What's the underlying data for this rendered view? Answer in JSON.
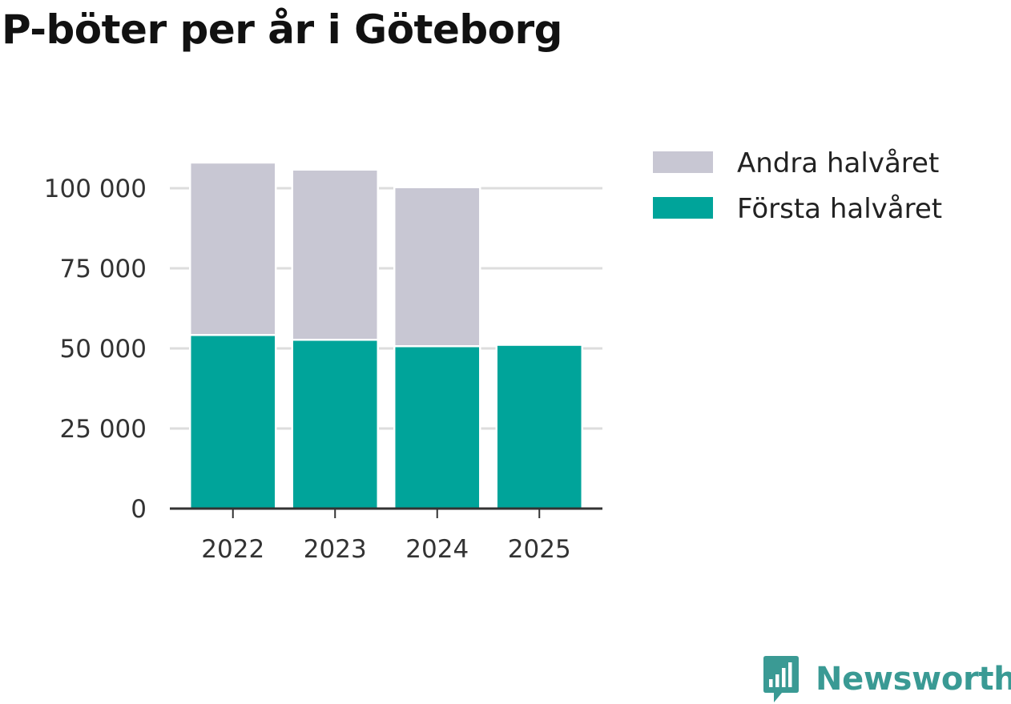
{
  "chart_data": {
    "type": "bar",
    "stacked": true,
    "title": "P-böter per år i Göteborg",
    "categories": [
      "2022",
      "2023",
      "2024",
      "2025"
    ],
    "series": [
      {
        "name": "Första halvåret",
        "color": "#00a49a",
        "values": [
          54500,
          53000,
          51000,
          50800
        ]
      },
      {
        "name": "Andra halvåret",
        "color": "#c8c7d3",
        "values": [
          53200,
          52500,
          49000,
          0
        ]
      }
    ],
    "legend_order": [
      "Andra halvåret",
      "Första halvåret"
    ],
    "y_ticks": [
      0,
      25000,
      50000,
      75000,
      100000
    ],
    "y_tick_labels": [
      "0",
      "25 000",
      "50 000",
      "75 000",
      "100 000"
    ],
    "ylim": [
      0,
      110000
    ],
    "grid": true,
    "xlabel": "",
    "ylabel": "",
    "legend_position": "top-right"
  },
  "brand": {
    "name": "Newsworthy",
    "color": "#3a9a94"
  }
}
